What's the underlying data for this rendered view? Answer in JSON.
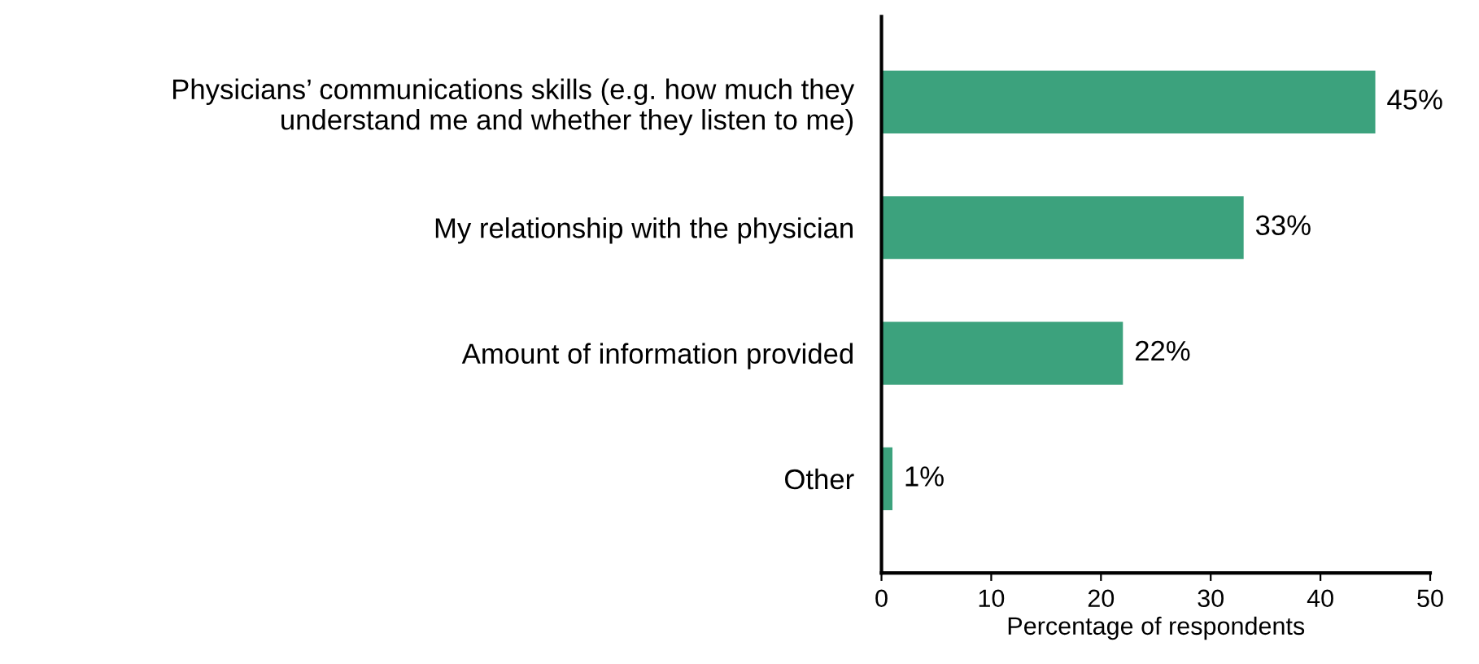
{
  "chart_data": {
    "type": "bar",
    "orientation": "horizontal",
    "categories": [
      "Physicians’ communications skills (e.g. how much they\nunderstand me and whether they listen to me)",
      "My relationship with the physician",
      "Amount of information provided",
      "Other"
    ],
    "values": [
      45,
      33,
      22,
      1
    ],
    "value_labels": [
      "45%",
      "33%",
      "22%",
      "1%"
    ],
    "color": "#3ca27d",
    "xlabel": "Percentage of respondents",
    "xlim": [
      0,
      50
    ],
    "xticks": [
      0,
      10,
      20,
      30,
      40,
      50
    ],
    "grid": false,
    "legend": false
  }
}
